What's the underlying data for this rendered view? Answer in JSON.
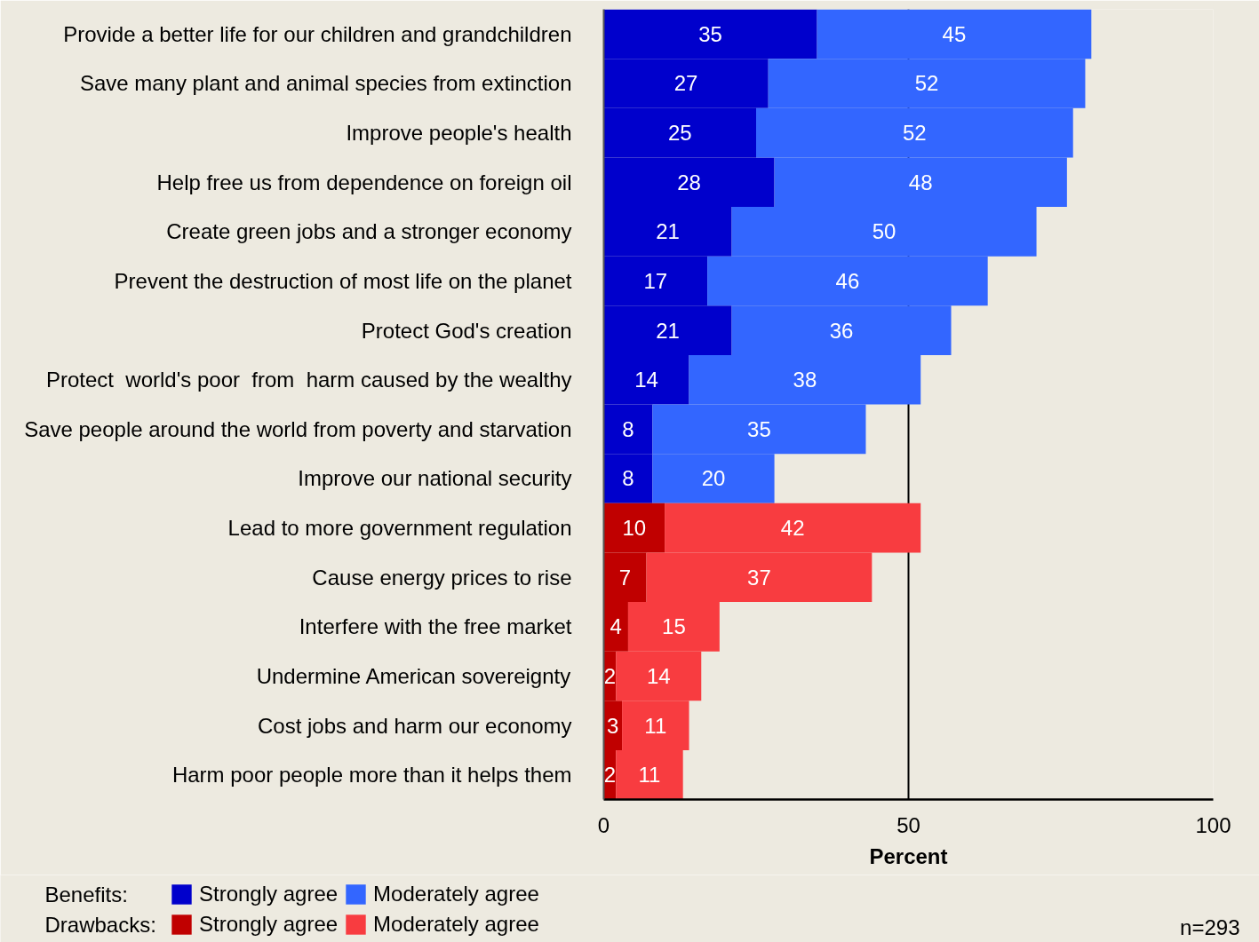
{
  "chart_data": {
    "type": "bar",
    "orientation": "horizontal",
    "stacked": true,
    "categories": [
      "Provide a better life for our children and grandchildren",
      "Save many plant and animal species from extinction",
      "Improve people's health",
      "Help free us from dependence on foreign oil",
      "Create green jobs and a stronger economy",
      "Prevent the destruction of most life on the planet",
      "Protect God's creation",
      "Protect  world's poor  from  harm caused by the wealthy",
      "Save people around the world from poverty and starvation",
      "Improve our national security",
      "Lead to more government regulation",
      "Cause energy prices to rise",
      "Interfere with the free market",
      "Undermine American sovereignty",
      "Cost jobs and harm our economy",
      "Harm poor people more than it helps them"
    ],
    "series": [
      {
        "name": "Strongly agree",
        "color": "#0000cc",
        "values": [
          35,
          27,
          25,
          28,
          21,
          17,
          21,
          14,
          8,
          8,
          null,
          null,
          null,
          null,
          null,
          null
        ]
      },
      {
        "name": "Moderately agree",
        "color": "#3366ff",
        "values": [
          45,
          52,
          52,
          48,
          50,
          46,
          36,
          38,
          35,
          20,
          null,
          null,
          null,
          null,
          null,
          null
        ]
      },
      {
        "name": "Strongly agree",
        "color": "#c00000",
        "values": [
          null,
          null,
          null,
          null,
          null,
          null,
          null,
          null,
          null,
          null,
          10,
          7,
          4,
          2,
          3,
          2
        ]
      },
      {
        "name": "Moderately agree",
        "color": "#f83c40",
        "values": [
          null,
          null,
          null,
          null,
          null,
          null,
          null,
          null,
          null,
          null,
          42,
          37,
          15,
          14,
          11,
          11
        ]
      }
    ],
    "xlim": [
      0,
      100
    ],
    "xticks": [
      0,
      50,
      100
    ],
    "xlabel": "Percent",
    "grid": "x",
    "legend": "bottom left",
    "data_labels": true,
    "annotations": [
      "Benefits:",
      "Drawbacks:",
      "n=293"
    ]
  }
}
